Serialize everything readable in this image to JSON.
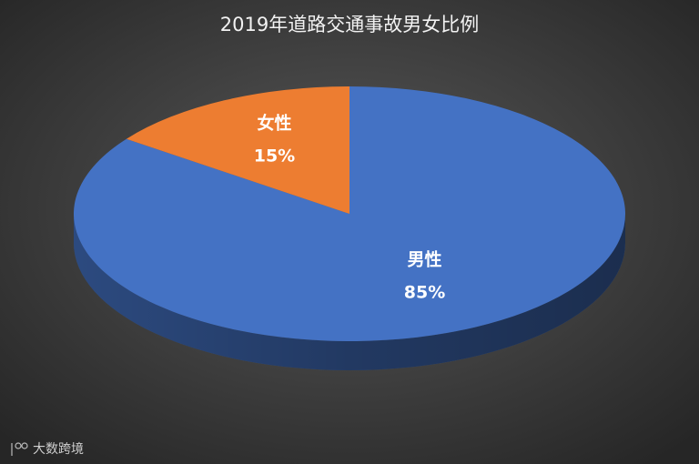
{
  "chart_data": {
    "type": "pie",
    "title": "2019年道路交通事故男女比例",
    "categories": [
      "男性",
      "女性"
    ],
    "values": [
      85,
      15
    ],
    "value_labels": [
      "85%",
      "15%"
    ],
    "colors": [
      "#4472c4",
      "#ed7d31"
    ],
    "watermark": "大数跨境"
  }
}
